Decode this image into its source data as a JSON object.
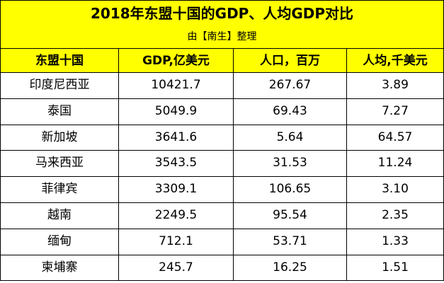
{
  "header": {
    "title": "2018年东盟十国的GDP、人均GDP对比",
    "subtitle": "由【南生】整理"
  },
  "table": {
    "columns": [
      "东盟十国",
      "GDP,亿美元",
      "人口，百万",
      "人均,千美元"
    ],
    "rows": [
      [
        "印度尼西亚",
        "10421.7",
        "267.67",
        "3.89"
      ],
      [
        "泰国",
        "5049.9",
        "69.43",
        "7.27"
      ],
      [
        "新加坡",
        "3641.6",
        "5.64",
        "64.57"
      ],
      [
        "马来西亚",
        "3543.5",
        "31.53",
        "11.24"
      ],
      [
        "菲律宾",
        "3309.1",
        "106.65",
        "3.10"
      ],
      [
        "越南",
        "2249.5",
        "95.54",
        "2.35"
      ],
      [
        "缅甸",
        "712.1",
        "53.71",
        "1.33"
      ],
      [
        "柬埔寨",
        "245.7",
        "16.25",
        "1.51"
      ]
    ]
  }
}
